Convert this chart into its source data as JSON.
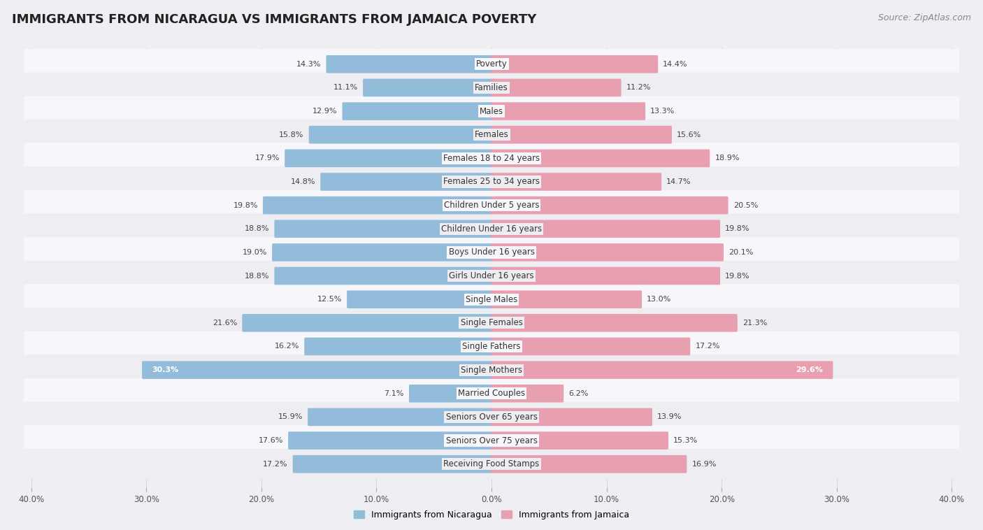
{
  "title": "IMMIGRANTS FROM NICARAGUA VS IMMIGRANTS FROM JAMAICA POVERTY",
  "source": "Source: ZipAtlas.com",
  "categories": [
    "Poverty",
    "Families",
    "Males",
    "Females",
    "Females 18 to 24 years",
    "Females 25 to 34 years",
    "Children Under 5 years",
    "Children Under 16 years",
    "Boys Under 16 years",
    "Girls Under 16 years",
    "Single Males",
    "Single Females",
    "Single Fathers",
    "Single Mothers",
    "Married Couples",
    "Seniors Over 65 years",
    "Seniors Over 75 years",
    "Receiving Food Stamps"
  ],
  "nicaragua_values": [
    14.3,
    11.1,
    12.9,
    15.8,
    17.9,
    14.8,
    19.8,
    18.8,
    19.0,
    18.8,
    12.5,
    21.6,
    16.2,
    30.3,
    7.1,
    15.9,
    17.6,
    17.2
  ],
  "jamaica_values": [
    14.4,
    11.2,
    13.3,
    15.6,
    18.9,
    14.7,
    20.5,
    19.8,
    20.1,
    19.8,
    13.0,
    21.3,
    17.2,
    29.6,
    6.2,
    13.9,
    15.3,
    16.9
  ],
  "nicaragua_color": "#92bcd9",
  "jamaica_color": "#e89fb0",
  "nicaragua_label": "Immigrants from Nicaragua",
  "jamaica_label": "Immigrants from Jamaica",
  "xlim": 40.0,
  "background_color": "#eeeef3",
  "row_color_even": "#f7f7fb",
  "row_color_odd": "#ededf2",
  "title_fontsize": 13,
  "source_fontsize": 9,
  "label_fontsize": 8.5,
  "value_fontsize": 8
}
